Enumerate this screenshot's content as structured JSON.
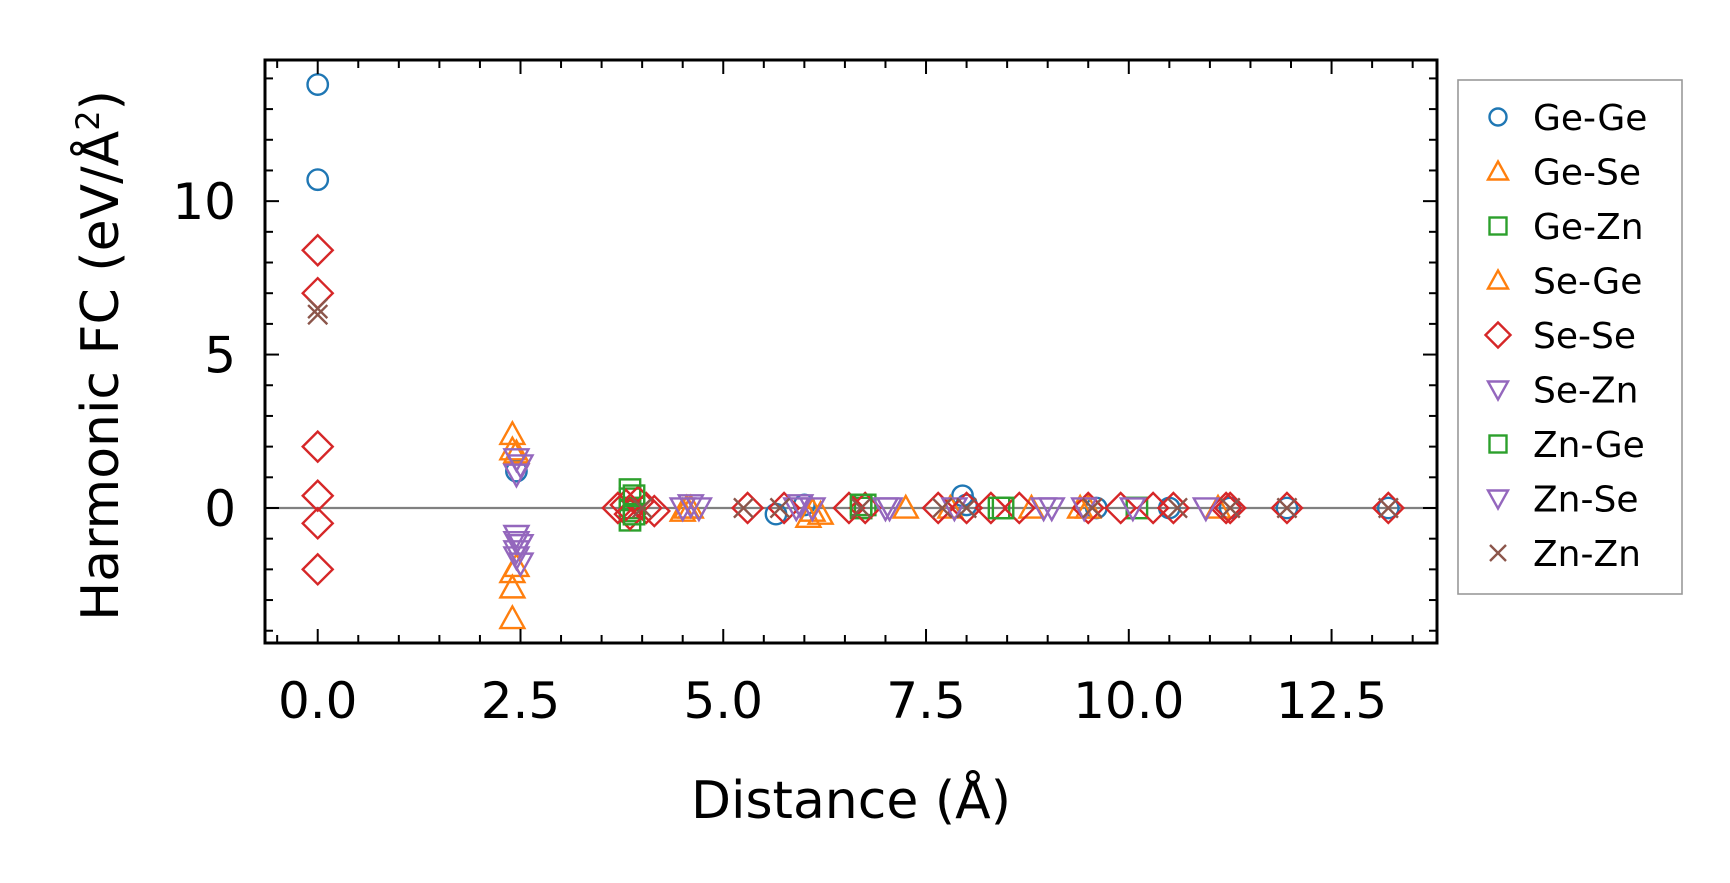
{
  "chart_data": {
    "type": "scatter",
    "title": "",
    "xlabel": "Distance (Å)",
    "ylabel": "Harmonic FC (eV/Å²)",
    "ylabel_parts": {
      "main": "Harmonic FC (eV/Å",
      "sup": "2",
      "close": ")"
    },
    "xlim": [
      -0.65,
      13.8
    ],
    "ylim": [
      -4.4,
      14.6
    ],
    "x_ticks": [
      0.0,
      2.5,
      5.0,
      7.5,
      10.0,
      12.5
    ],
    "x_tick_labels": [
      "0.0",
      "2.5",
      "5.0",
      "7.5",
      "10.0",
      "12.5"
    ],
    "y_ticks": [
      0,
      5,
      10
    ],
    "y_tick_labels": [
      "0",
      "5",
      "10"
    ],
    "grid": false,
    "zero_line": true,
    "legend_position": "right-outside",
    "series": [
      {
        "name": "Ge-Ge",
        "marker": "circle",
        "color": "#1f77b4",
        "points": [
          [
            0,
            13.8
          ],
          [
            0,
            10.7
          ],
          [
            2.45,
            1.2
          ],
          [
            5.65,
            -0.2
          ],
          [
            6.0,
            0.1
          ],
          [
            7.95,
            0.4
          ],
          [
            8.0,
            0.1
          ],
          [
            9.6,
            0.0
          ],
          [
            10.5,
            0.0
          ],
          [
            11.25,
            0.0
          ],
          [
            11.95,
            0.0
          ],
          [
            13.2,
            0.0
          ]
        ]
      },
      {
        "name": "Ge-Se",
        "marker": "triangle-up",
        "color": "#ff7f0e",
        "points": [
          [
            2.4,
            2.4
          ],
          [
            2.4,
            1.9
          ],
          [
            2.4,
            -2.1
          ],
          [
            2.4,
            -2.6
          ],
          [
            2.4,
            -3.6
          ],
          [
            4.5,
            -0.1
          ],
          [
            4.55,
            0.0
          ],
          [
            6.05,
            -0.3
          ],
          [
            6.1,
            -0.1
          ],
          [
            7.25,
            0.0
          ],
          [
            8.8,
            0.0
          ],
          [
            9.5,
            0.0
          ],
          [
            11.1,
            0.0
          ]
        ]
      },
      {
        "name": "Ge-Zn",
        "marker": "square",
        "color": "#2ca02c",
        "points": [
          [
            3.85,
            0.6
          ],
          [
            3.85,
            0.3
          ],
          [
            3.85,
            -0.1
          ],
          [
            3.85,
            -0.4
          ],
          [
            3.9,
            0.0
          ],
          [
            6.7,
            0.0
          ],
          [
            6.75,
            0.1
          ],
          [
            8.4,
            0.0
          ],
          [
            10.1,
            0.0
          ]
        ]
      },
      {
        "name": "Se-Ge",
        "marker": "triangle-up",
        "color": "#ff7f0e",
        "points": [
          [
            2.45,
            1.8
          ],
          [
            2.45,
            -1.9
          ],
          [
            4.6,
            0.0
          ],
          [
            6.2,
            -0.2
          ],
          [
            7.8,
            0.0
          ],
          [
            9.4,
            0.0
          ]
        ]
      },
      {
        "name": "Se-Se",
        "marker": "diamond",
        "color": "#d62728",
        "points": [
          [
            0,
            8.4
          ],
          [
            0,
            7.0
          ],
          [
            0,
            2.0
          ],
          [
            0,
            0.4
          ],
          [
            0,
            -0.5
          ],
          [
            0,
            -2.0
          ],
          [
            3.7,
            0.0
          ],
          [
            3.8,
            0.1
          ],
          [
            3.85,
            -0.2
          ],
          [
            3.95,
            0.2
          ],
          [
            4.05,
            0.0
          ],
          [
            4.15,
            -0.1
          ],
          [
            5.3,
            0.0
          ],
          [
            5.75,
            0.0
          ],
          [
            6.55,
            0.0
          ],
          [
            6.75,
            0.0
          ],
          [
            7.65,
            0.0
          ],
          [
            8.0,
            0.0
          ],
          [
            8.3,
            0.0
          ],
          [
            8.65,
            0.0
          ],
          [
            9.5,
            0.0
          ],
          [
            9.9,
            0.0
          ],
          [
            10.3,
            0.0
          ],
          [
            10.55,
            0.0
          ],
          [
            11.2,
            0.0
          ],
          [
            11.25,
            0.0
          ],
          [
            11.95,
            0.0
          ],
          [
            13.2,
            0.0
          ]
        ]
      },
      {
        "name": "Se-Zn",
        "marker": "triangle-down",
        "color": "#9467bd",
        "points": [
          [
            2.45,
            1.6
          ],
          [
            2.45,
            1.1
          ],
          [
            2.45,
            -0.9
          ],
          [
            2.45,
            -1.1
          ],
          [
            2.45,
            -1.4
          ],
          [
            2.45,
            -1.6
          ],
          [
            4.5,
            0.0
          ],
          [
            4.7,
            0.0
          ],
          [
            5.95,
            0.1
          ],
          [
            6.1,
            0.0
          ],
          [
            7.0,
            0.0
          ],
          [
            7.85,
            0.0
          ],
          [
            8.95,
            0.0
          ],
          [
            9.45,
            0.0
          ],
          [
            10.05,
            0.0
          ],
          [
            10.95,
            0.0
          ]
        ]
      },
      {
        "name": "Zn-Ge",
        "marker": "square",
        "color": "#2ca02c",
        "points": [
          [
            3.9,
            0.4
          ],
          [
            3.9,
            -0.2
          ],
          [
            6.7,
            0.1
          ],
          [
            8.45,
            0.0
          ]
        ]
      },
      {
        "name": "Zn-Se",
        "marker": "triangle-down",
        "color": "#9467bd",
        "points": [
          [
            2.5,
            1.4
          ],
          [
            2.5,
            -1.2
          ],
          [
            2.5,
            -1.8
          ],
          [
            4.6,
            0.1
          ],
          [
            5.9,
            0.0
          ],
          [
            7.05,
            0.0
          ],
          [
            9.05,
            0.0
          ]
        ]
      },
      {
        "name": "Zn-Zn",
        "marker": "x",
        "color": "#8c564b",
        "points": [
          [
            0,
            6.5
          ],
          [
            0,
            6.3
          ],
          [
            4.0,
            0.0
          ],
          [
            5.25,
            0.0
          ],
          [
            5.7,
            0.0
          ],
          [
            6.7,
            0.0
          ],
          [
            7.7,
            0.0
          ],
          [
            8.0,
            0.0
          ],
          [
            9.55,
            0.0
          ],
          [
            10.6,
            0.0
          ],
          [
            11.25,
            0.0
          ],
          [
            11.95,
            0.0
          ],
          [
            13.2,
            0.0
          ]
        ]
      }
    ]
  }
}
